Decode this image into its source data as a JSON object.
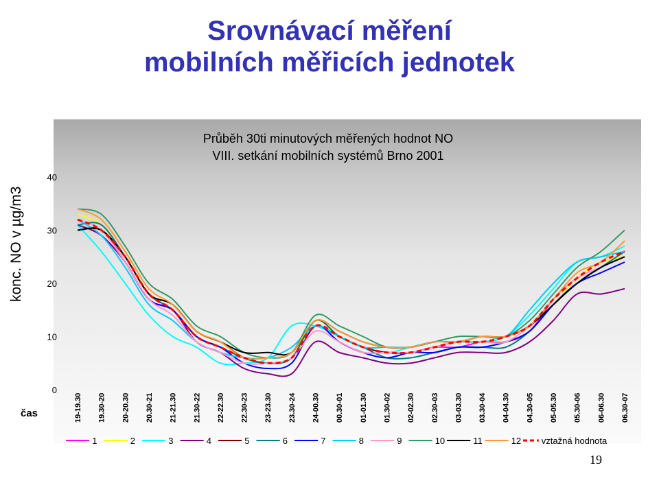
{
  "slide": {
    "title_line1": "Srovnávací měření",
    "title_line2": "mobilních měřicích jednotek",
    "page_number": "19",
    "axis_side_label": "konc. NO v µg/m3",
    "axis_time_label": "čas"
  },
  "chart_data": {
    "type": "line",
    "title_line1": "Průběh 30ti minutových měřených hodnot NO",
    "title_line2": "VIII. setkání mobilních systémů Brno 2001",
    "ylabel": "konc. NO v µg/m3",
    "xlabel": "čas",
    "ylim": [
      0,
      40
    ],
    "yticks": [
      0,
      10,
      20,
      30,
      40
    ],
    "categories": [
      "19-19.30",
      "19.30-20",
      "20-20.30",
      "20.30-21",
      "21-21.30",
      "21.30-22",
      "22-22.30",
      "22.30-23",
      "23-23.30",
      "23.30-24",
      "24-00.30",
      "00.30-01",
      "01-01.30",
      "01.30-02",
      "02-02.30",
      "02.30-03",
      "03-03.30",
      "03.30-04",
      "04-04.30",
      "04.30-05",
      "05-05.30",
      "05.30-06",
      "06-06.30",
      "06.30-07"
    ],
    "legend_position": "bottom",
    "series": [
      {
        "name": "1",
        "color": "#ff00ff",
        "dash": false,
        "values": [
          31,
          29,
          24,
          17,
          15,
          10,
          8,
          6,
          5,
          6,
          12,
          9,
          7,
          7,
          7,
          8,
          8,
          9,
          9,
          11,
          17,
          21,
          23,
          25
        ]
      },
      {
        "name": "2",
        "color": "#ffff00",
        "dash": false,
        "values": [
          33,
          31,
          25,
          18,
          16,
          11,
          9,
          6,
          5,
          6,
          12,
          10,
          8,
          7,
          7,
          8,
          9,
          9,
          9,
          11,
          16,
          21,
          24,
          25
        ]
      },
      {
        "name": "3",
        "color": "#00ffff",
        "dash": false,
        "values": [
          31,
          26,
          20,
          14,
          10,
          8,
          5,
          5,
          6,
          12,
          12,
          10,
          8,
          7,
          8,
          9,
          9,
          9,
          10,
          14,
          19,
          24,
          25,
          27
        ]
      },
      {
        "name": "4",
        "color": "#800080",
        "dash": false,
        "values": [
          31,
          29,
          24,
          17,
          15,
          9,
          7,
          4,
          3,
          3,
          9,
          7,
          6,
          5,
          5,
          6,
          7,
          7,
          7,
          9,
          13,
          18,
          18,
          19
        ]
      },
      {
        "name": "5",
        "color": "#800000",
        "dash": false,
        "values": [
          30,
          30,
          25,
          18,
          16,
          11,
          9,
          6,
          5,
          6,
          13,
          10,
          8,
          7,
          7,
          8,
          9,
          9,
          9,
          11,
          16,
          20,
          23,
          25
        ]
      },
      {
        "name": "6",
        "color": "#008080",
        "dash": false,
        "values": [
          31,
          31,
          25,
          18,
          15,
          10,
          8,
          6,
          5,
          6,
          13,
          10,
          8,
          6,
          6,
          7,
          8,
          8,
          8,
          11,
          16,
          20,
          23,
          26
        ]
      },
      {
        "name": "7",
        "color": "#0000ff",
        "dash": false,
        "values": [
          30,
          30,
          24,
          17,
          15,
          10,
          8,
          5,
          4,
          5,
          12,
          9,
          7,
          6,
          7,
          7,
          8,
          8,
          9,
          11,
          16,
          20,
          22,
          24
        ]
      },
      {
        "name": "8",
        "color": "#00ccff",
        "dash": false,
        "values": [
          32,
          29,
          23,
          16,
          13,
          9,
          7,
          6,
          6,
          8,
          12,
          10,
          8,
          8,
          8,
          9,
          9,
          10,
          10,
          15,
          20,
          24,
          25,
          26
        ]
      },
      {
        "name": "9",
        "color": "#ff99cc",
        "dash": false,
        "values": [
          32,
          30,
          24,
          17,
          14,
          9,
          7,
          5,
          5,
          6,
          11,
          9,
          7,
          7,
          7,
          8,
          9,
          9,
          9,
          12,
          17,
          21,
          23,
          25
        ]
      },
      {
        "name": "10",
        "color": "#339966",
        "dash": false,
        "values": [
          34,
          33,
          27,
          20,
          17,
          12,
          10,
          7,
          6,
          7,
          14,
          12,
          10,
          8,
          8,
          9,
          10,
          10,
          10,
          13,
          18,
          23,
          26,
          30
        ]
      },
      {
        "name": "11",
        "color": "#000000",
        "dash": false,
        "values": [
          30,
          30,
          25,
          18,
          16,
          11,
          9,
          7,
          7,
          7,
          13,
          11,
          9,
          8,
          8,
          9,
          9,
          10,
          10,
          12,
          16,
          20,
          23,
          25
        ]
      },
      {
        "name": "12",
        "color": "#ff9933",
        "dash": false,
        "values": [
          34,
          32,
          26,
          19,
          16,
          11,
          9,
          6,
          6,
          7,
          13,
          11,
          9,
          8,
          8,
          9,
          9,
          10,
          10,
          12,
          17,
          22,
          24,
          28
        ]
      },
      {
        "name": "vztažná hodnota",
        "color": "#ff0000",
        "dash": true,
        "values": [
          32,
          30,
          25,
          18,
          15,
          10,
          8,
          6,
          5,
          6,
          12,
          10,
          8,
          7,
          7,
          8,
          9,
          9,
          10,
          12,
          17,
          21,
          24,
          26
        ]
      }
    ]
  }
}
